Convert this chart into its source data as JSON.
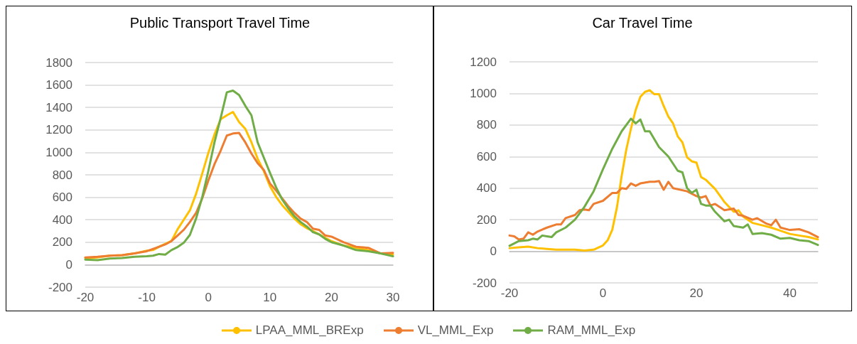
{
  "chart_data": [
    {
      "type": "line",
      "title": "Public Transport Travel Time",
      "xlim": [
        -20,
        30
      ],
      "xticks": [
        -20,
        -10,
        0,
        10,
        20,
        30
      ],
      "ylim": [
        -200,
        1800
      ],
      "yticks": [
        -200,
        0,
        200,
        400,
        600,
        800,
        1000,
        1200,
        1400,
        1600,
        1800
      ],
      "grid": "y",
      "marker": "none",
      "line_style": "solid",
      "legend": "bottom",
      "series": [
        {
          "name": "LPAA_MML_BRExp",
          "color": "#ffc000",
          "x": [
            -20,
            -18,
            -16,
            -14,
            -12,
            -10,
            -9,
            -8,
            -7,
            -6,
            -5,
            -4,
            -3,
            -2,
            -1,
            0,
            1,
            2,
            3,
            4,
            5,
            6,
            7,
            8,
            9,
            10,
            11,
            12,
            13,
            14,
            15,
            16,
            17,
            18,
            19,
            20,
            22,
            24,
            26,
            28,
            30
          ],
          "values": [
            60,
            65,
            80,
            85,
            100,
            125,
            130,
            160,
            185,
            210,
            315,
            400,
            484,
            630,
            810,
            995,
            1160,
            1295,
            1330,
            1360,
            1270,
            1210,
            1090,
            945,
            835,
            700,
            605,
            530,
            470,
            410,
            360,
            325,
            300,
            270,
            240,
            210,
            170,
            150,
            130,
            100,
            90
          ]
        },
        {
          "name": "VL_MML_Exp",
          "color": "#ed7d31",
          "x": [
            -20,
            -18,
            -16,
            -14,
            -12,
            -10,
            -8,
            -7,
            -6,
            -5,
            -4,
            -3,
            -2,
            -1,
            0,
            1,
            2,
            3,
            4,
            5,
            6,
            7,
            8,
            9,
            10,
            11,
            12,
            13,
            14,
            15,
            16,
            17,
            18,
            19,
            20,
            22,
            24,
            26,
            28,
            30
          ],
          "values": [
            65,
            70,
            80,
            85,
            100,
            120,
            160,
            180,
            210,
            260,
            310,
            380,
            460,
            590,
            750,
            895,
            1015,
            1150,
            1168,
            1173,
            1090,
            990,
            905,
            845,
            725,
            660,
            590,
            520,
            460,
            410,
            380,
            320,
            310,
            260,
            250,
            200,
            160,
            150,
            100,
            105
          ]
        },
        {
          "name": "RAM_MML_Exp",
          "color": "#70ad47",
          "x": [
            -20,
            -18,
            -16,
            -14,
            -12,
            -10,
            -9,
            -8,
            -7,
            -6,
            -5,
            -4,
            -3,
            -2,
            -1,
            0,
            1,
            2,
            3,
            4,
            5,
            6,
            7,
            8,
            9,
            10,
            11,
            12,
            13,
            14,
            15,
            16,
            17,
            18,
            19,
            20,
            22,
            24,
            26,
            28,
            30
          ],
          "values": [
            45,
            40,
            55,
            60,
            70,
            75,
            80,
            95,
            90,
            130,
            157,
            195,
            265,
            410,
            600,
            835,
            1090,
            1305,
            1535,
            1550,
            1510,
            1415,
            1330,
            1090,
            955,
            820,
            690,
            580,
            500,
            430,
            380,
            340,
            290,
            270,
            230,
            200,
            170,
            130,
            120,
            100,
            75
          ]
        }
      ]
    },
    {
      "type": "line",
      "title": "Car Travel Time",
      "xlim": [
        -20,
        46
      ],
      "xticks": [
        -20,
        0,
        20,
        40
      ],
      "ylim": [
        -200,
        1200
      ],
      "yticks": [
        -200,
        0,
        200,
        400,
        600,
        800,
        1000,
        1200
      ],
      "grid": "y",
      "marker": "none",
      "line_style": "solid",
      "series": [
        {
          "color": "#ffc000",
          "x": [
            -20,
            -18,
            -16,
            -14,
            -12,
            -10,
            -8,
            -6,
            -4,
            -2,
            0,
            1,
            2,
            3,
            4,
            5,
            6,
            7,
            8,
            9,
            10,
            11,
            12,
            13,
            14,
            15,
            16,
            17,
            18,
            19,
            20,
            21,
            22,
            24,
            26,
            28,
            29,
            30,
            32,
            34,
            36,
            38,
            40,
            42,
            44,
            46
          ],
          "values": [
            20,
            25,
            30,
            20,
            15,
            10,
            10,
            10,
            5,
            10,
            37,
            70,
            137,
            280,
            478,
            645,
            778,
            895,
            978,
            1010,
            1020,
            995,
            995,
            920,
            853,
            810,
            728,
            690,
            595,
            570,
            562,
            470,
            453,
            395,
            312,
            250,
            260,
            220,
            180,
            165,
            150,
            130,
            110,
            100,
            90,
            75
          ]
        },
        {
          "color": "#ed7d31",
          "x": [
            -20,
            -19,
            -18,
            -17,
            -16,
            -15,
            -14,
            -12,
            -10,
            -9,
            -8,
            -6,
            -5,
            -4,
            -3,
            -2,
            0,
            2,
            3,
            4,
            5,
            6,
            7,
            8,
            10,
            11,
            12,
            13,
            14,
            15,
            18,
            20,
            21,
            22,
            23,
            24,
            26,
            28,
            29,
            30,
            32,
            33,
            35,
            36,
            37,
            38,
            40,
            42,
            44,
            46
          ],
          "values": [
            100,
            95,
            75,
            80,
            120,
            105,
            125,
            150,
            170,
            170,
            210,
            230,
            260,
            265,
            260,
            300,
            320,
            370,
            370,
            400,
            395,
            430,
            415,
            430,
            440,
            440,
            445,
            390,
            440,
            400,
            380,
            350,
            340,
            350,
            290,
            300,
            260,
            270,
            230,
            225,
            200,
            210,
            175,
            165,
            200,
            150,
            135,
            140,
            120,
            90
          ]
        },
        {
          "color": "#70ad47",
          "x": [
            -20,
            -18,
            -16,
            -15,
            -14,
            -13,
            -12,
            -11,
            -10,
            -8,
            -6,
            -4,
            -2,
            0,
            2,
            4,
            6,
            7,
            8,
            9,
            10,
            12,
            14,
            16,
            17,
            18,
            19,
            20,
            21,
            22,
            23,
            24,
            26,
            27,
            28,
            30,
            31,
            32,
            34,
            36,
            38,
            40,
            42,
            44,
            46
          ],
          "values": [
            35,
            65,
            70,
            80,
            75,
            100,
            95,
            90,
            120,
            150,
            200,
            280,
            380,
            520,
            650,
            760,
            840,
            810,
            835,
            760,
            760,
            660,
            600,
            510,
            500,
            400,
            370,
            390,
            300,
            290,
            290,
            250,
            190,
            200,
            160,
            150,
            170,
            110,
            115,
            105,
            80,
            85,
            70,
            65,
            40
          ]
        }
      ]
    }
  ]
}
